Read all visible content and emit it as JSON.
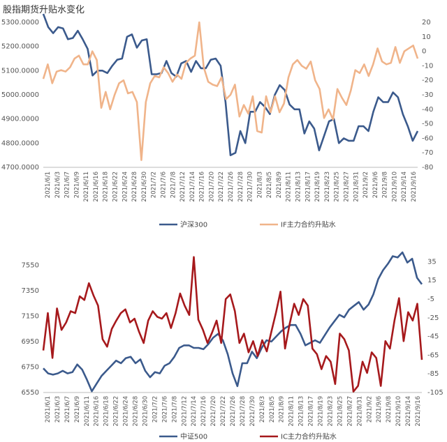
{
  "header": {
    "title": "股指期货升贴水变化"
  },
  "chart_data": [
    {
      "type": "line",
      "x_labels": [
        "2021/6/1",
        "2021/6/3",
        "2021/6/7",
        "2021/6/9",
        "2021/6/11",
        "2021/6/16",
        "2021/6/18",
        "2021/6/22",
        "2021/6/24",
        "2021/6/28",
        "2021/6/30",
        "2021/7/2",
        "2021/7/6",
        "2021/7/8",
        "2021/7/12",
        "2021/7/14",
        "2021/7/16",
        "2021/7/20",
        "2021/7/22",
        "2021/7/26",
        "2021/7/28",
        "2021/7/30",
        "2021/8/3",
        "2021/8/5",
        "2021/8/9",
        "2021/8/11",
        "2021/8/13",
        "2021/8/17",
        "2021/8/19",
        "2021/8/23",
        "2021/8/25",
        "2021/8/27",
        "2021/8/31",
        "2021/9/2",
        "2021/9/6",
        "2021/9/8",
        "2021/9/10",
        "2021/9/14",
        "2021/9/16"
      ],
      "left_axis": {
        "min": 4700,
        "max": 5300,
        "ticks": [
          "5300.0000",
          "5200.0000",
          "5100.0000",
          "5000.0000",
          "4900.0000",
          "4800.0000",
          "4700.0000"
        ]
      },
      "right_axis": {
        "min": -80,
        "max": 20,
        "ticks": [
          "20",
          "10",
          "0",
          "-10",
          "-20",
          "-30",
          "-40",
          "-50",
          "-60",
          "-70",
          "-80"
        ]
      },
      "legend_position": "bottom",
      "series": [
        {
          "name": "沪深300",
          "axis": "left",
          "color": "#3b5a8c",
          "values": [
            5335,
            5280,
            5255,
            5280,
            5275,
            5230,
            5235,
            5265,
            5230,
            5190,
            5080,
            5100,
            5100,
            5090,
            5120,
            5145,
            5150,
            5240,
            5250,
            5195,
            5225,
            5230,
            5085,
            5085,
            5090,
            5140,
            5090,
            5075,
            5130,
            5140,
            5095,
            5140,
            5110,
            5110,
            5145,
            5150,
            5120,
            4970,
            4750,
            4760,
            4850,
            4800,
            4930,
            4930,
            4970,
            4950,
            4920,
            5000,
            5040,
            5020,
            4960,
            4940,
            4940,
            4840,
            4890,
            4860,
            4770,
            4830,
            4890,
            4900,
            4800,
            4820,
            4810,
            4810,
            4870,
            4870,
            4850,
            4930,
            4990,
            4970,
            4970,
            5010,
            4990,
            4920,
            4870,
            4810,
            4850
          ]
        },
        {
          "name": "IF主力合约升贴水",
          "axis": "right",
          "color": "#f0b48a",
          "values": [
            -19,
            -9,
            -22,
            -14,
            -13,
            -14,
            -11,
            -5,
            -3,
            -9,
            -9,
            0,
            -6,
            -39,
            -28,
            -40,
            -30,
            -22,
            -20,
            -29,
            -28,
            -35,
            -75,
            -35,
            -22,
            -17,
            -18,
            -11,
            -15,
            -21,
            -16,
            -19,
            -8,
            -5,
            -3,
            20,
            -11,
            -21,
            -23,
            -24,
            -18,
            -33,
            -30,
            -23,
            -45,
            -37,
            -43,
            -31,
            -55,
            -56,
            -31,
            -42,
            -31,
            -42,
            -36,
            -18,
            -9,
            -6,
            -10,
            -12,
            -7,
            -20,
            -26,
            -46,
            -40,
            -47,
            -26,
            -32,
            -37,
            -27,
            -13,
            -15,
            -9,
            -17,
            -9,
            2,
            -7,
            -9,
            -8,
            3,
            -8,
            0,
            2,
            4,
            -5
          ]
        }
      ]
    },
    {
      "type": "line",
      "x_labels": [
        "2021/6/1",
        "2021/6/3",
        "2021/6/7",
        "2021/6/9",
        "2021/6/11",
        "2021/6/16",
        "2021/6/18",
        "2021/6/22",
        "2021/6/24",
        "2021/6/28",
        "2021/6/30",
        "2021/7/2",
        "2021/7/6",
        "2021/7/8",
        "2021/7/12",
        "2021/7/14",
        "2021/7/16",
        "2021/7/20",
        "2021/7/22",
        "2021/7/26",
        "2021/7/28",
        "2021/7/30",
        "2021/8/3",
        "2021/8/5",
        "2021/8/9",
        "2021/8/11",
        "2021/8/13",
        "2021/8/17",
        "2021/8/19",
        "2021/8/23",
        "2021/8/25",
        "2021/8/27",
        "2021/8/31",
        "2021/9/2",
        "2021/9/6",
        "2021/9/8",
        "2021/9/10",
        "2021/9/14",
        "2021/9/16"
      ],
      "left_axis": {
        "min": 6550,
        "max": 7650,
        "ticks": [
          "7550",
          "7350",
          "7150",
          "6950",
          "6750",
          "6550"
        ]
      },
      "right_axis": {
        "min": -105,
        "max": 45,
        "ticks": [
          "35",
          "15",
          "-5",
          "-25",
          "-45",
          "-65",
          "-85",
          "-105"
        ]
      },
      "legend_position": "bottom",
      "series": [
        {
          "name": "中证500",
          "axis": "left",
          "color": "#3b5a8c",
          "values": [
            6740,
            6700,
            6690,
            6700,
            6720,
            6700,
            6710,
            6770,
            6730,
            6650,
            6560,
            6620,
            6680,
            6720,
            6760,
            6800,
            6780,
            6820,
            6830,
            6780,
            6810,
            6720,
            6670,
            6710,
            6700,
            6760,
            6780,
            6830,
            6900,
            6920,
            6920,
            6900,
            6900,
            6890,
            6930,
            6980,
            7010,
            6960,
            6850,
            6700,
            6600,
            6780,
            6780,
            6870,
            6820,
            6900,
            6960,
            6950,
            6990,
            7030,
            7060,
            7080,
            7080,
            7010,
            6920,
            6940,
            6960,
            6940,
            7000,
            7060,
            7110,
            7160,
            7140,
            7200,
            7230,
            7260,
            7200,
            7240,
            7320,
            7440,
            7510,
            7560,
            7620,
            7610,
            7650,
            7570,
            7600,
            7450,
            7400
          ]
        },
        {
          "name": "IC主力合约升贴水",
          "axis": "right",
          "color": "#a6191c",
          "values": [
            -60,
            -20,
            -68,
            -15,
            -38,
            -30,
            -18,
            -20,
            -2,
            -6,
            12,
            -1,
            -12,
            -48,
            -56,
            -37,
            -28,
            -20,
            -16,
            -30,
            -26,
            -40,
            -52,
            -28,
            -18,
            -24,
            -26,
            -20,
            -36,
            -20,
            1,
            -12,
            -22,
            40,
            -27,
            -38,
            -52,
            -41,
            -28,
            -52,
            -5,
            0,
            -18,
            -52,
            -42,
            -62,
            -50,
            -66,
            -49,
            -61,
            -40,
            -20,
            3,
            -58,
            -32,
            -10,
            -22,
            -5,
            -12,
            -58,
            -64,
            -80,
            -66,
            -72,
            -96,
            -42,
            -48,
            -60,
            -104,
            -98,
            -72,
            -84,
            -62,
            -68,
            -98,
            -50,
            -58,
            -28,
            -4,
            -50,
            -19,
            -28,
            -10,
            -70
          ]
        }
      ]
    }
  ]
}
